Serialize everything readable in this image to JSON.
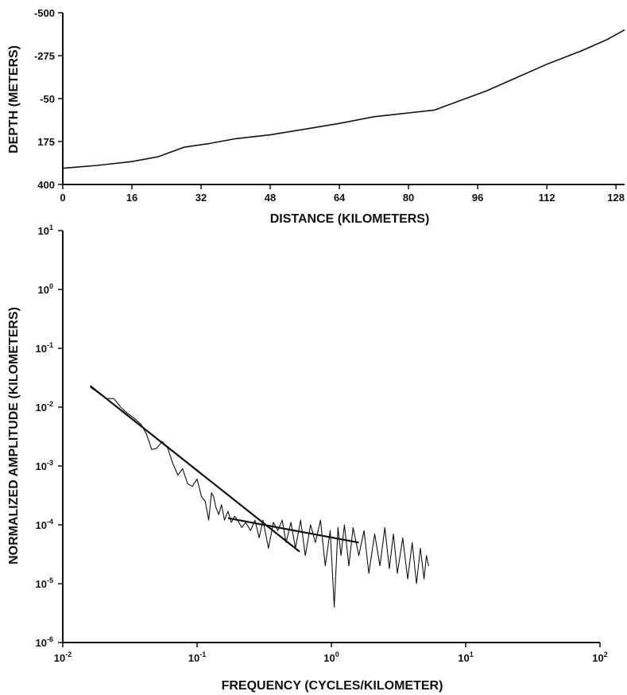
{
  "colors": {
    "ink": "#111111",
    "background": "#ffffff"
  },
  "chart_data": [
    {
      "type": "line",
      "xlabel": "DISTANCE (KILOMETERS)",
      "ylabel": "DEPTH (METERS)",
      "xlim": [
        0,
        130
      ],
      "ylim": [
        400,
        -500
      ],
      "y_inverted": true,
      "grid": false,
      "xticks": [
        "0",
        "16",
        "32",
        "48",
        "64",
        "80",
        "96",
        "112",
        "128"
      ],
      "yticks": [
        "-500",
        "-275",
        "-50",
        "175",
        "400"
      ],
      "series": [
        {
          "x": [
            0,
            8,
            16,
            22,
            28,
            34,
            40,
            48,
            56,
            64,
            72,
            80,
            86,
            92,
            98,
            104,
            112,
            120,
            126,
            130
          ],
          "y": [
            315,
            300,
            280,
            255,
            205,
            185,
            160,
            140,
            110,
            80,
            45,
            25,
            10,
            -40,
            -90,
            -150,
            -230,
            -300,
            -360,
            -410
          ]
        }
      ]
    },
    {
      "type": "line",
      "xlabel": "FREQUENCY (CYCLES/KILOMETER)",
      "ylabel": "NORMALIZED AMPLITUDE (KILOMETERS)",
      "x_scale": "log",
      "y_scale": "log",
      "xlim": [
        0.01,
        100
      ],
      "ylim": [
        1e-06,
        10
      ],
      "grid": false,
      "xticks": [
        {
          "base": "10",
          "exp": "-2"
        },
        {
          "base": "10",
          "exp": "-1"
        },
        {
          "base": "10",
          "exp": "0"
        },
        {
          "base": "10",
          "exp": "1"
        },
        {
          "base": "10",
          "exp": "2"
        }
      ],
      "yticks": [
        {
          "base": "10",
          "exp": "1"
        },
        {
          "base": "10",
          "exp": "0"
        },
        {
          "base": "10",
          "exp": "-1"
        },
        {
          "base": "10",
          "exp": "-2"
        },
        {
          "base": "10",
          "exp": "-3"
        },
        {
          "base": "10",
          "exp": "-4"
        },
        {
          "base": "10",
          "exp": "-5"
        },
        {
          "base": "10",
          "exp": "-6"
        }
      ],
      "series": [
        {
          "role": "spectrum",
          "x": [
            0.016,
            0.018,
            0.021,
            0.024,
            0.027,
            0.03,
            0.034,
            0.038,
            0.042,
            0.046,
            0.05,
            0.055,
            0.06,
            0.066,
            0.072,
            0.078,
            0.085,
            0.092,
            0.1,
            0.108,
            0.115,
            0.122,
            0.128,
            0.133,
            0.138,
            0.145,
            0.152,
            0.16,
            0.17,
            0.18,
            0.19,
            0.2,
            0.215,
            0.23,
            0.25,
            0.27,
            0.29,
            0.31,
            0.34,
            0.37,
            0.4,
            0.43,
            0.46,
            0.5,
            0.54,
            0.59,
            0.64,
            0.7,
            0.76,
            0.83,
            0.9,
            0.98,
            1.05,
            1.12,
            1.18,
            1.25,
            1.35,
            1.45,
            1.6,
            1.75,
            1.9,
            2.1,
            2.3,
            2.5,
            2.7,
            2.9,
            3.1,
            3.4,
            3.7,
            4.0,
            4.3,
            4.6,
            4.9,
            5.1,
            5.3
          ],
          "y": [
            0.022,
            0.018,
            0.014,
            0.014,
            0.01,
            0.008,
            0.0065,
            0.0052,
            0.0035,
            0.0019,
            0.002,
            0.0026,
            0.0021,
            0.0011,
            0.0007,
            0.0009,
            0.0005,
            0.00045,
            0.0006,
            0.0003,
            0.00025,
            0.00012,
            0.00035,
            0.0003,
            0.0002,
            0.00015,
            0.00022,
            0.00012,
            0.00017,
            0.00011,
            0.00014,
            0.00012,
            9e-05,
            0.00011,
            8e-05,
            0.00012,
            6e-05,
            0.00012,
            4e-05,
            0.00011,
            8e-05,
            0.00012,
            5e-05,
            0.00011,
            4e-05,
            0.00012,
            3e-05,
            0.0001,
            5e-05,
            0.00012,
            2e-05,
            8e-05,
            4e-06,
            9e-05,
            3e-05,
            0.0001,
            2e-05,
            9e-05,
            3e-05,
            8e-05,
            1.5e-05,
            7e-05,
            2e-05,
            9e-05,
            1.8e-05,
            7e-05,
            1.5e-05,
            6e-05,
            1.2e-05,
            5e-05,
            1e-05,
            4e-05,
            1.2e-05,
            3e-05,
            2e-05
          ]
        },
        {
          "role": "fit-line",
          "x": [
            0.016,
            0.58
          ],
          "y": [
            0.023,
            3.5e-05
          ]
        },
        {
          "role": "fit-line",
          "x": [
            0.17,
            1.6
          ],
          "y": [
            0.00013,
            5e-05
          ]
        }
      ]
    }
  ]
}
